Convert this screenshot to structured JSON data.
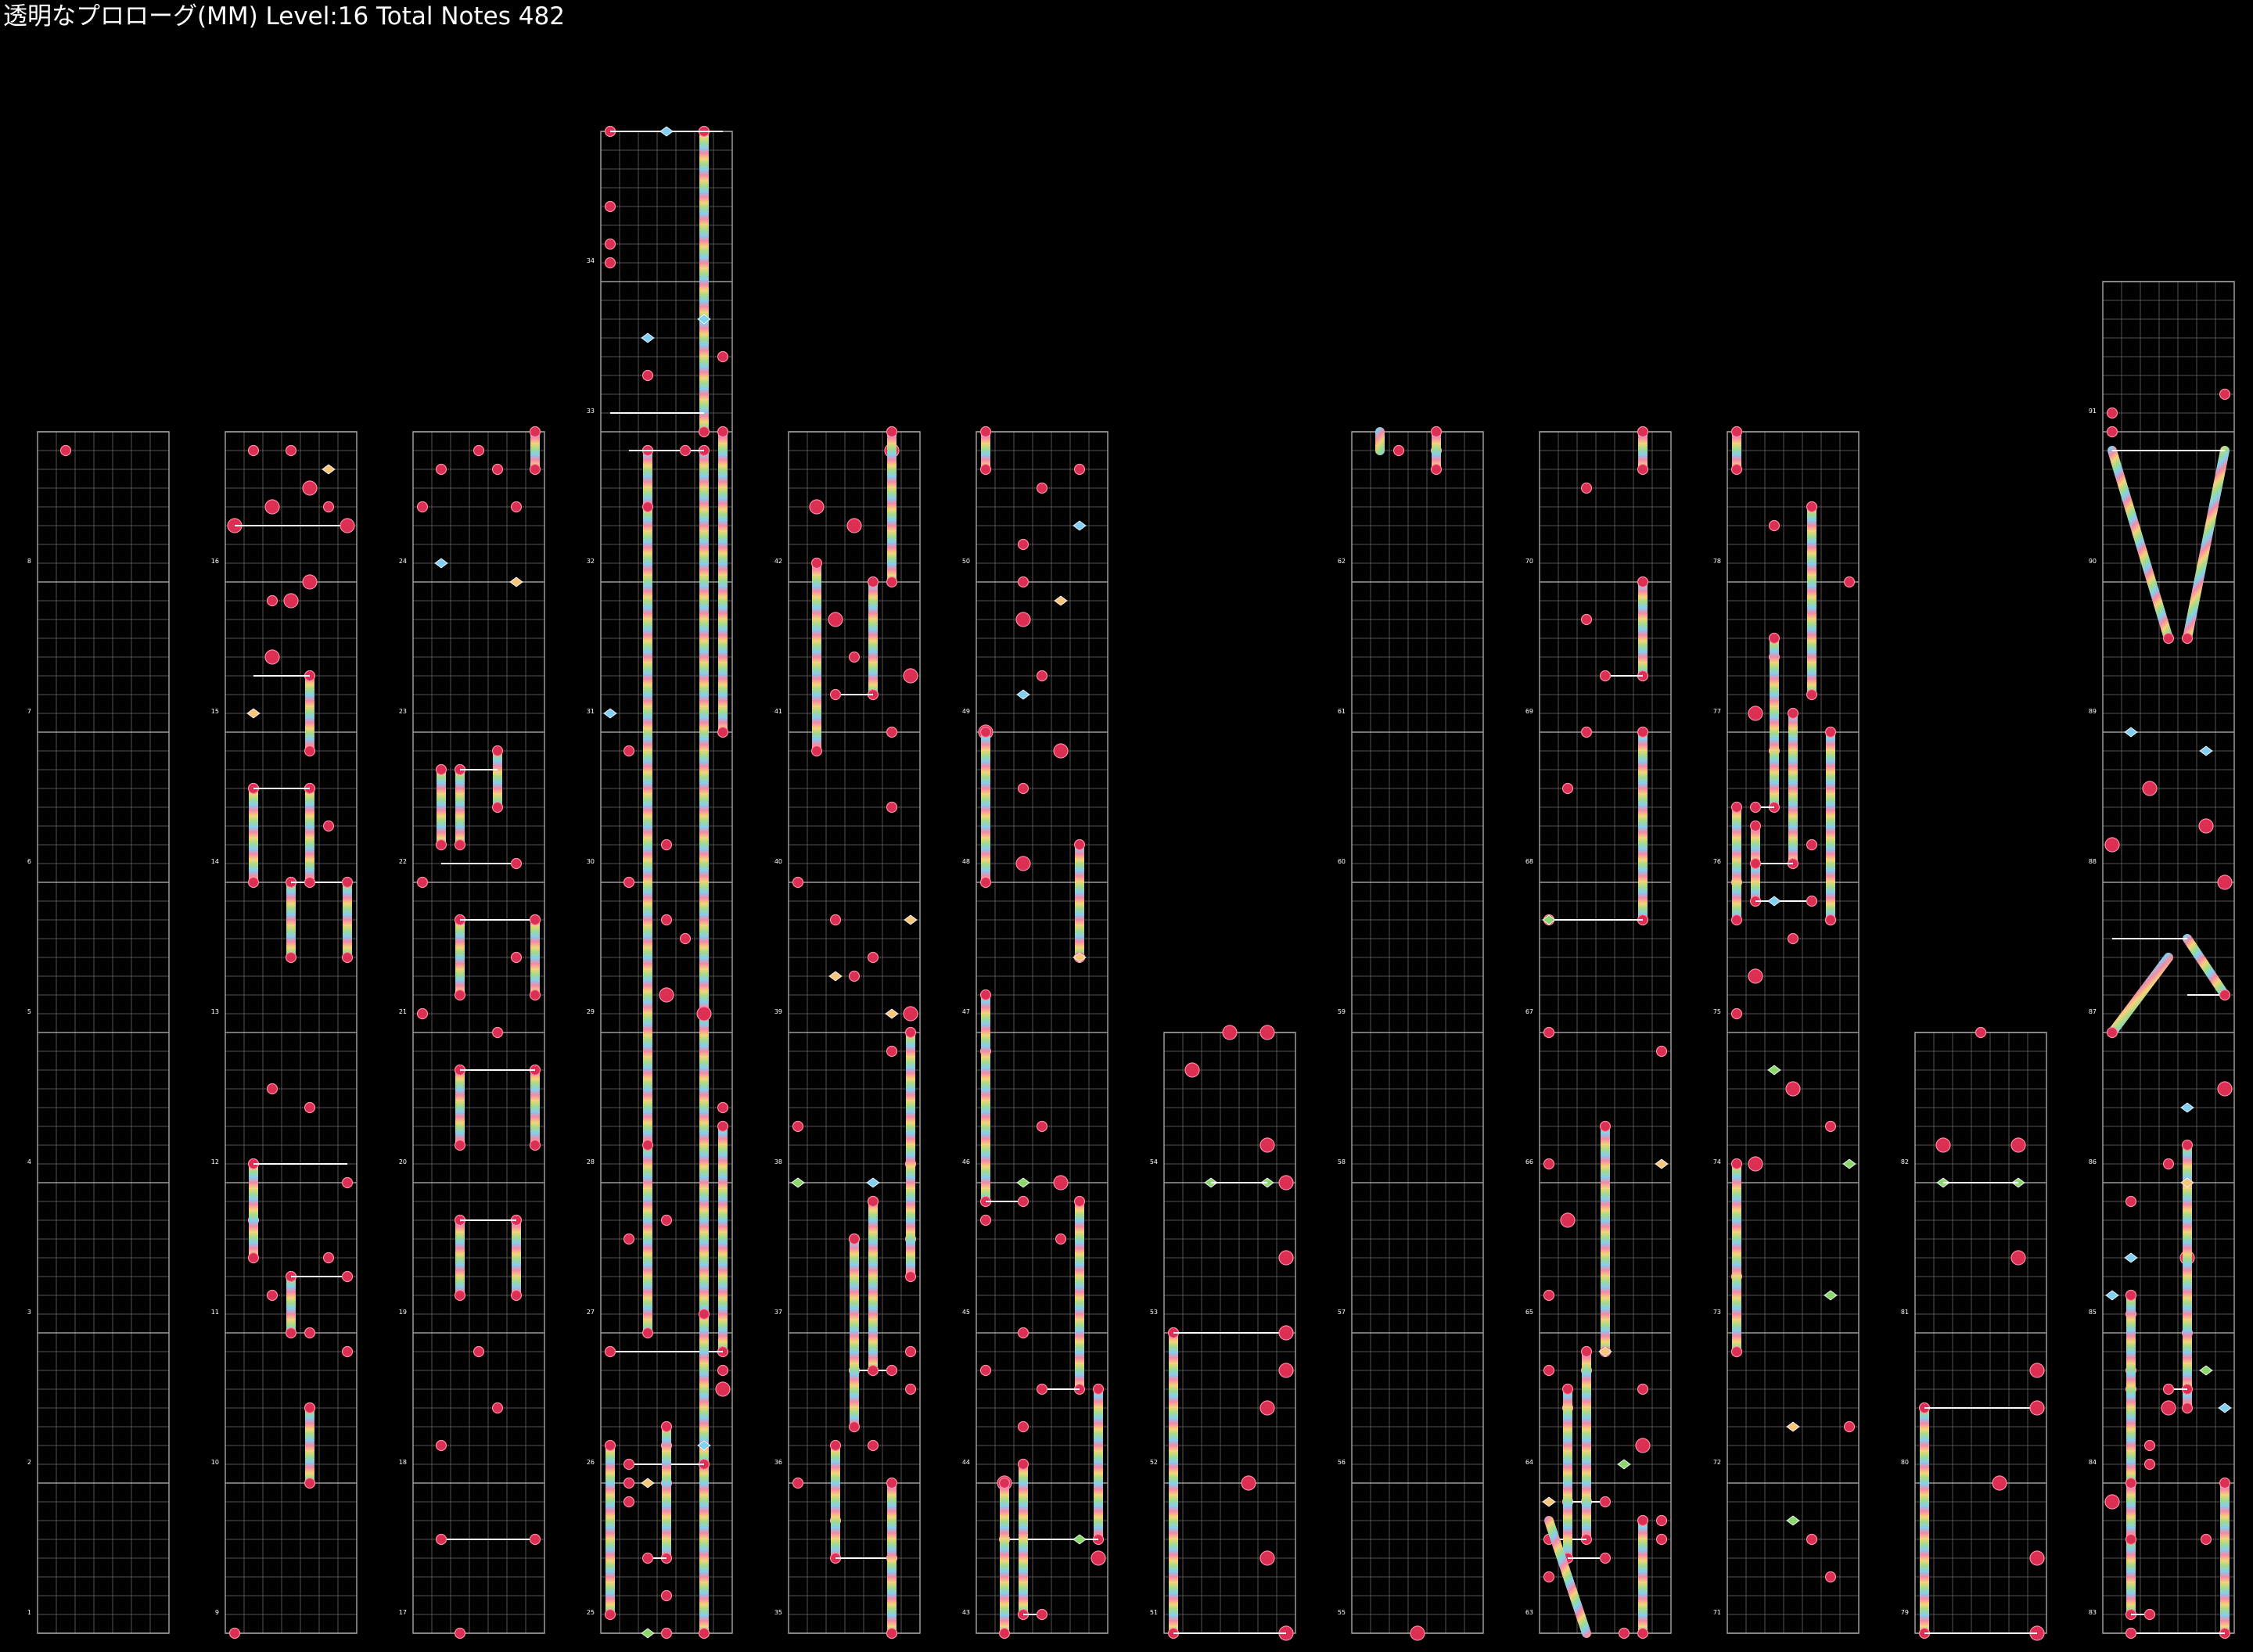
{
  "header": {
    "title": "透明なプロローグ(MM) Level:16 Total Notes 482"
  },
  "colors": {
    "background": "#000000",
    "grid_major": "#9a9a9a",
    "grid_minor": "#555555",
    "tap_note": "#dc2f54",
    "tap_note_outline": "#ff8aa3",
    "flick_blue": "#7fd3ef",
    "flick_orange": "#f3c77c",
    "flick_green": "#8ed66f",
    "slide_line": "#ffffff"
  },
  "chart": {
    "lanes": 7,
    "columns": [
      {
        "measures": [
          1,
          2,
          3,
          4,
          5,
          6,
          7,
          8
        ]
      },
      {
        "measures": [
          9,
          10,
          11,
          12,
          13,
          14,
          15,
          16
        ]
      },
      {
        "measures": [
          17,
          18,
          19,
          20,
          21,
          22,
          23,
          24
        ]
      },
      {
        "measures": [
          25,
          26,
          27,
          28,
          29,
          30,
          31,
          32,
          33,
          34
        ]
      },
      {
        "measures": [
          35,
          36,
          37,
          38,
          39,
          40,
          41,
          42
        ]
      },
      {
        "measures": [
          43,
          44,
          45,
          46,
          47,
          48,
          49,
          50
        ]
      },
      {
        "measures": [
          51,
          52,
          53,
          54
        ]
      },
      {
        "measures": [
          55,
          56,
          57,
          58,
          59,
          60,
          61,
          62
        ]
      },
      {
        "measures": [
          63,
          64,
          65,
          66,
          67,
          68,
          69,
          70
        ]
      },
      {
        "measures": [
          71,
          72,
          73,
          74,
          75,
          76,
          77,
          78
        ]
      },
      {
        "measures": [
          79,
          80,
          81,
          82
        ]
      },
      {
        "measures": [
          83,
          84,
          85,
          86,
          87,
          88,
          89,
          90,
          91
        ]
      }
    ]
  }
}
